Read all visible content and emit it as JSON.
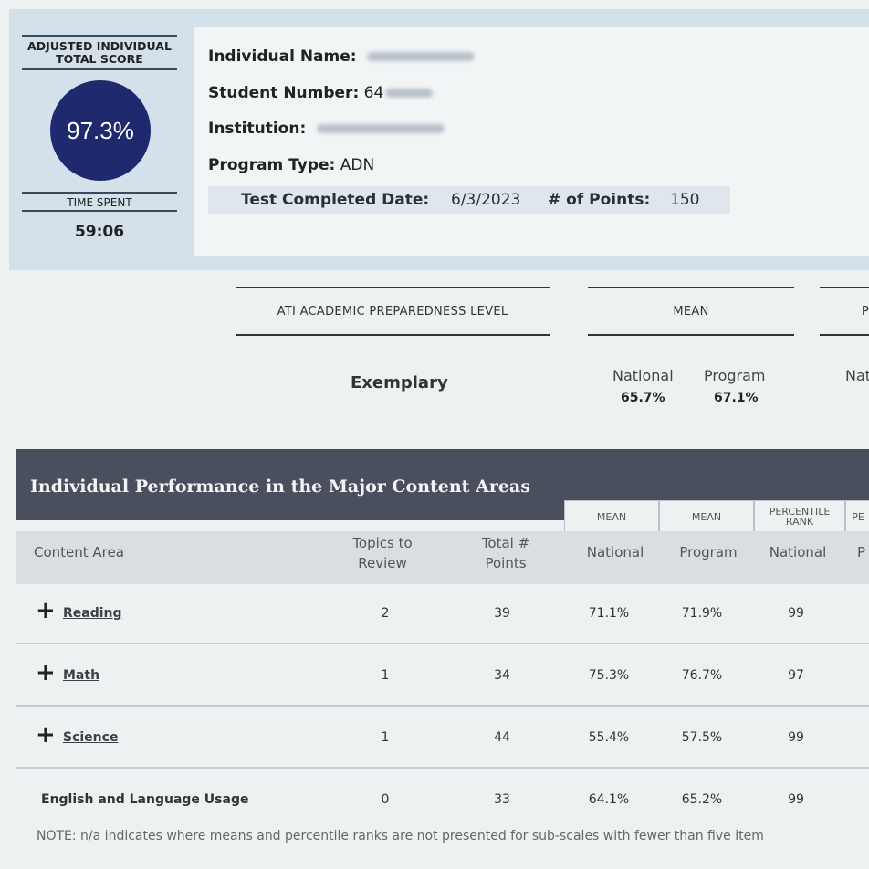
{
  "score_panel": {
    "title_line1": "ADJUSTED INDIVIDUAL",
    "title_line2": "TOTAL SCORE",
    "score": "97.3%",
    "time_label": "TIME SPENT",
    "time_value": "59:06"
  },
  "info": {
    "name_label": "Individual Name:",
    "student_number_label": "Student Number:",
    "student_number_partial": "64",
    "institution_label": "Institution:",
    "program_type_label": "Program Type:",
    "program_type": "ADN",
    "test_completed_label": "Test Completed Date:",
    "test_completed_date": "6/3/2023",
    "points_label": "# of Points:",
    "points": "150"
  },
  "summary": {
    "col1": "ATI ACADEMIC PREPAREDNESS LEVEL",
    "col2": "MEAN",
    "col3_partial": "P",
    "level": "Exemplary",
    "national_label": "National",
    "national_mean": "65.7%",
    "program_label": "Program",
    "program_mean": "67.1%",
    "nat_partial": "Nat"
  },
  "table": {
    "title": "Individual Performance in the Major Content Areas",
    "sub_mean1": "MEAN",
    "sub_mean2": "MEAN",
    "sub_pct1": "PERCENTILE RANK",
    "sub_pct2": "PE",
    "headers": {
      "content_area": "Content Area",
      "topics": "Topics to Review",
      "total": "Total # Points",
      "national": "National",
      "program": "Program",
      "pr_national": "National",
      "pr_partial": "P"
    },
    "rows": [
      {
        "name": "Reading",
        "topics": "2",
        "points": "39",
        "national": "71.1%",
        "program": "71.9%",
        "rank": "99"
      },
      {
        "name": "Math",
        "topics": "1",
        "points": "34",
        "national": "75.3%",
        "program": "76.7%",
        "rank": "97"
      },
      {
        "name": "Science",
        "topics": "1",
        "points": "44",
        "national": "55.4%",
        "program": "57.5%",
        "rank": "99"
      },
      {
        "name": "English and Language Usage",
        "topics": "0",
        "points": "33",
        "national": "64.1%",
        "program": "65.2%",
        "rank": "99"
      }
    ],
    "note": "NOTE: n/a indicates where means and percentile ranks are not presented for sub-scales with fewer than five item"
  },
  "colors": {
    "circle": "#1f2a6e",
    "header_band": "#4a4f5e",
    "top_band": "#d4e0ea"
  }
}
